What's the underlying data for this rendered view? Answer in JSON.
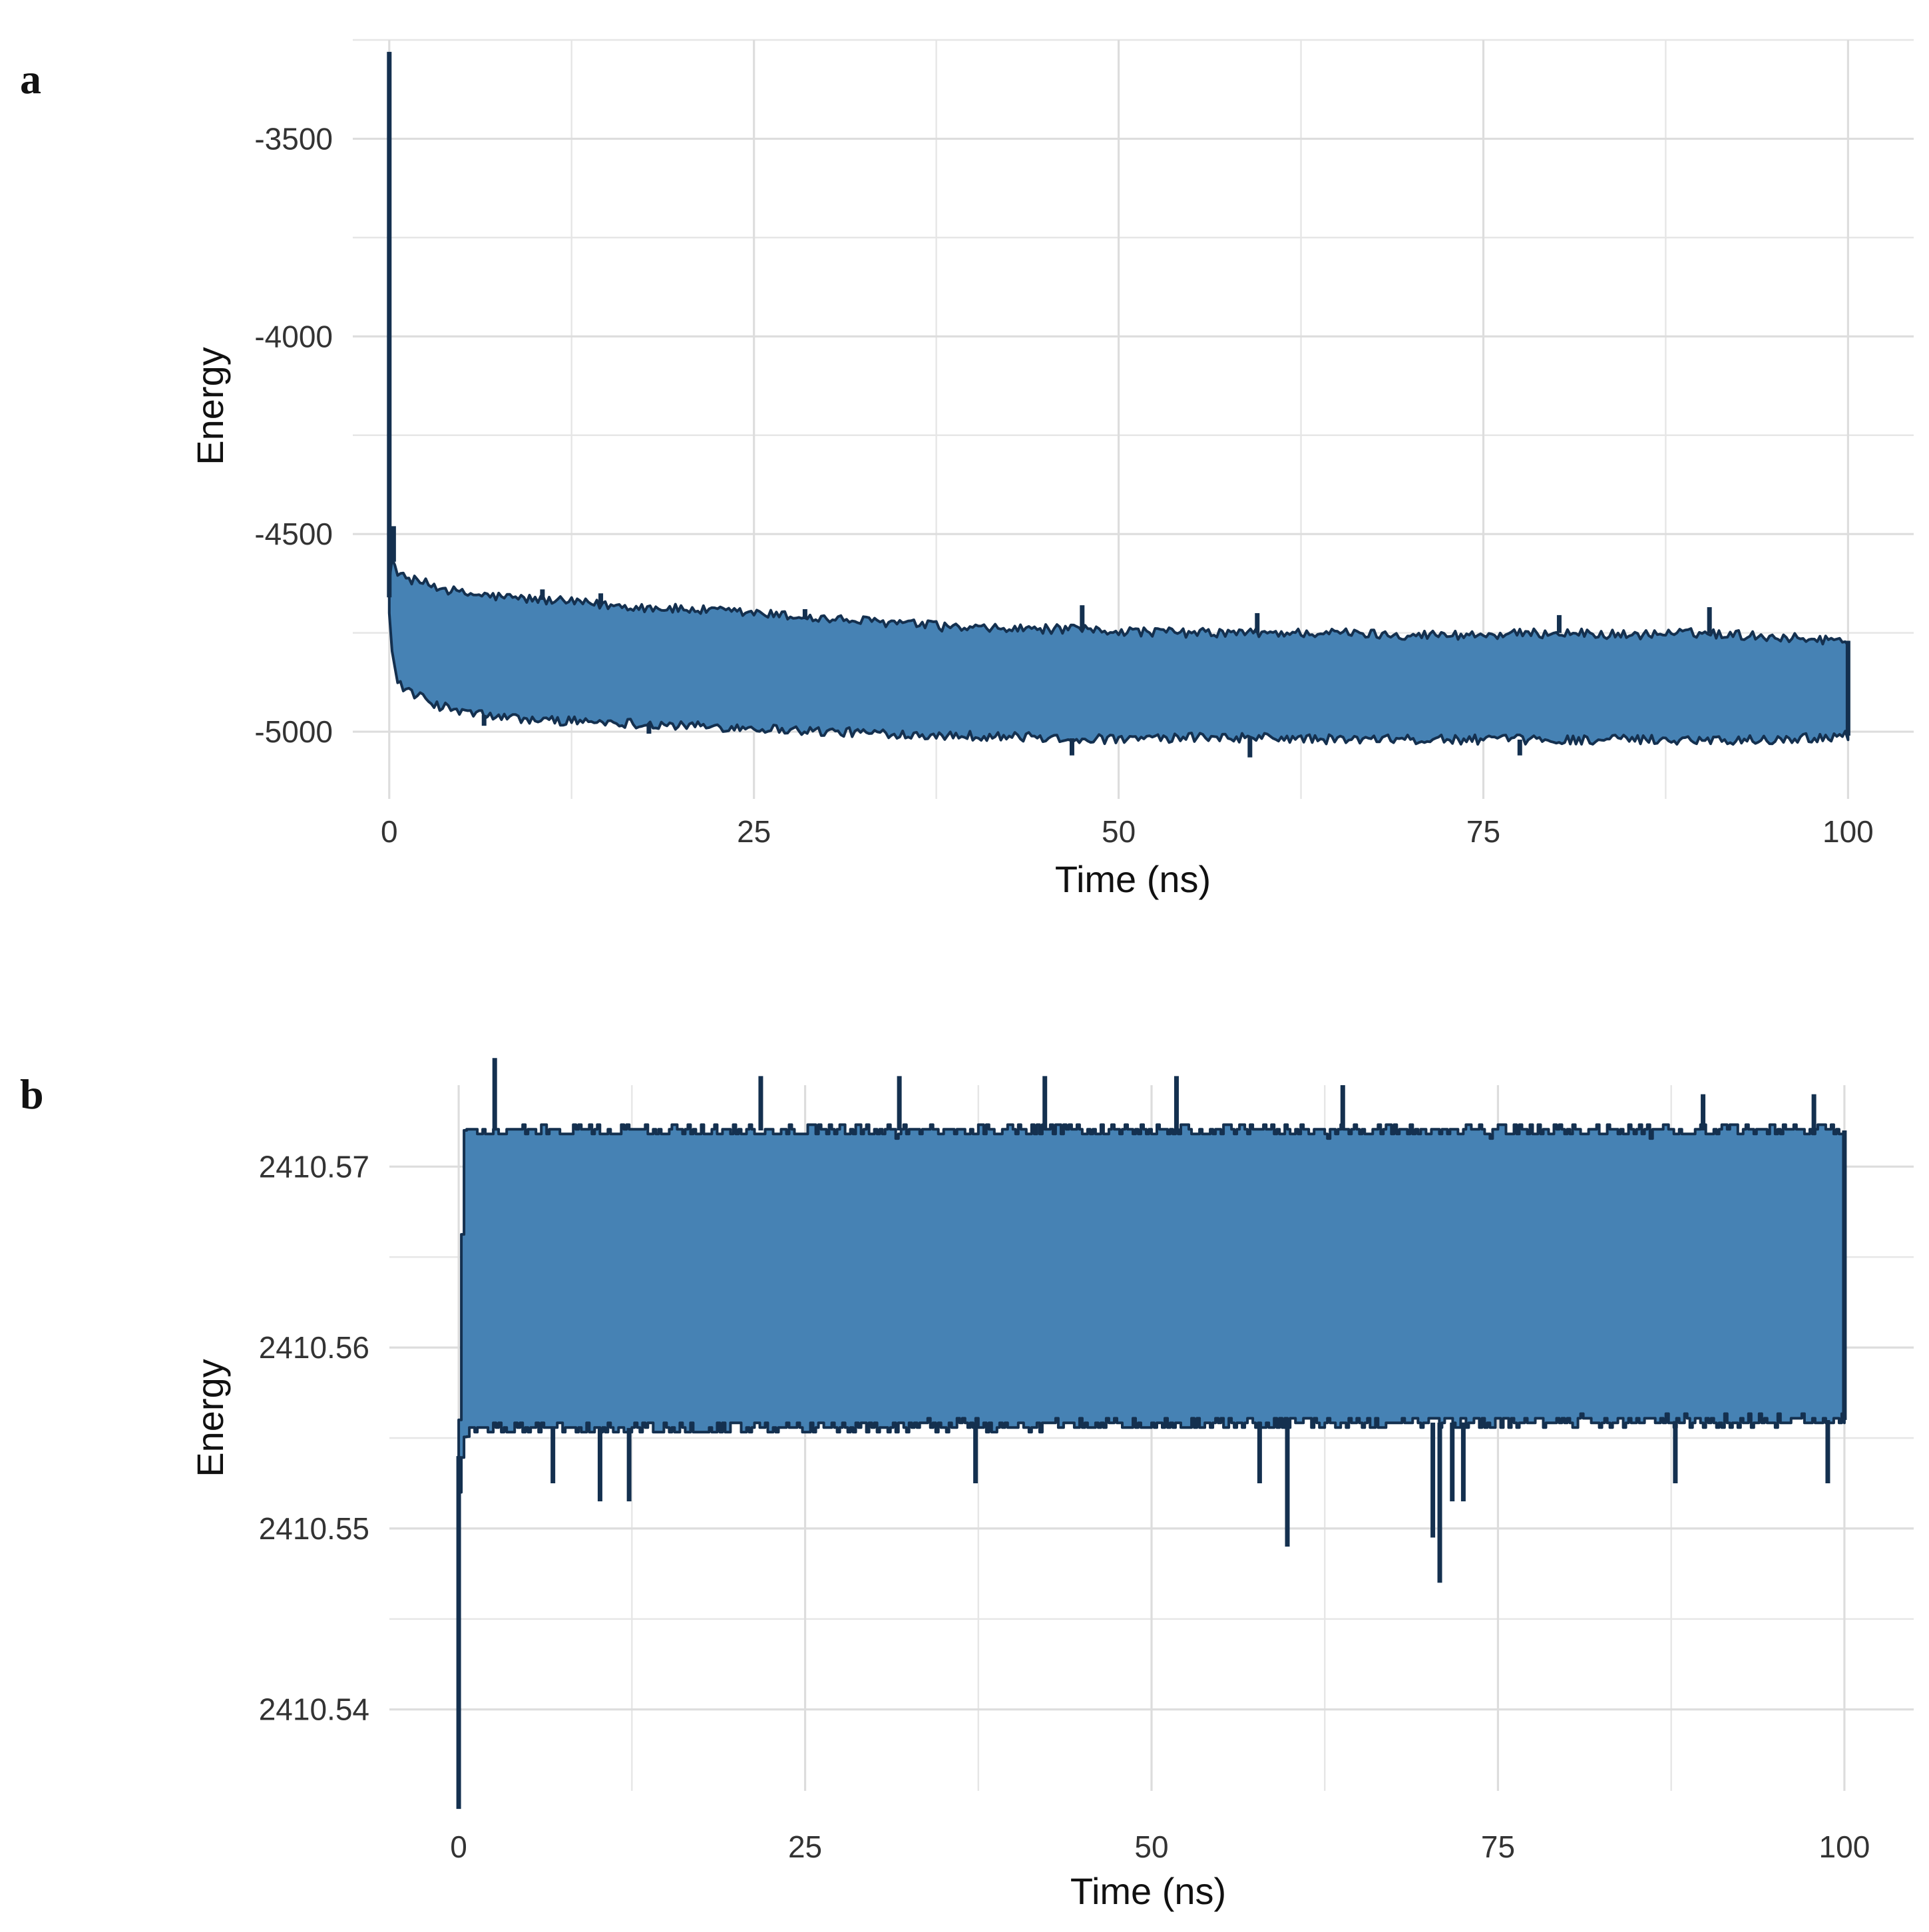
{
  "panels": [
    {
      "label": "a"
    },
    {
      "label": "b"
    }
  ],
  "chart_data": [
    {
      "type": "area",
      "panel": "a",
      "xlabel": "Time (ns)",
      "ylabel": "Energy",
      "xlim": [
        -2.5,
        104.5
      ],
      "ylim": [
        -5170,
        -3250
      ],
      "x_ticks": [
        0,
        25,
        50,
        75,
        100
      ],
      "y_ticks": [
        -3500,
        -4000,
        -4500,
        -5000
      ],
      "y_minor_ticks": [
        -3250,
        -3750,
        -4250,
        -4750
      ],
      "grid": true,
      "fill_color": "#4682b4",
      "line_color": "#14304f",
      "initial_spike": {
        "x": 0,
        "y": -3280
      },
      "upper_envelope": {
        "x": [
          0,
          0.2,
          0.5,
          1,
          2,
          3,
          5,
          8,
          10,
          15,
          20,
          25,
          30,
          35,
          40,
          45,
          50,
          55,
          60,
          65,
          70,
          75,
          80,
          85,
          90,
          95,
          100
        ],
        "y": [
          -4620,
          -4560,
          -4590,
          -4610,
          -4620,
          -4630,
          -4650,
          -4660,
          -4665,
          -4680,
          -4690,
          -4700,
          -4715,
          -4725,
          -4740,
          -4740,
          -4745,
          -4750,
          -4750,
          -4750,
          -4755,
          -4755,
          -4750,
          -4755,
          -4750,
          -4760,
          -4770
        ]
      },
      "lower_envelope": {
        "x": [
          0,
          0.2,
          0.5,
          1,
          2,
          3,
          5,
          8,
          10,
          15,
          20,
          25,
          30,
          35,
          40,
          45,
          50,
          55,
          60,
          65,
          70,
          75,
          80,
          85,
          90,
          95,
          100
        ],
        "y": [
          -4700,
          -4800,
          -4860,
          -4890,
          -4910,
          -4930,
          -4950,
          -4965,
          -4970,
          -4975,
          -4985,
          -4990,
          -5000,
          -5005,
          -5010,
          -5015,
          -5020,
          -5015,
          -5015,
          -5020,
          -5020,
          -5020,
          -5020,
          -5020,
          -5020,
          -5020,
          -5010
        ]
      },
      "upper_peaks": [
        {
          "x": 0.3,
          "y": -4480
        },
        {
          "x": 10.5,
          "y": -4640
        },
        {
          "x": 14.5,
          "y": -4650
        },
        {
          "x": 28.5,
          "y": -4690
        },
        {
          "x": 47.5,
          "y": -4680
        },
        {
          "x": 59.5,
          "y": -4700
        },
        {
          "x": 80.2,
          "y": -4705
        },
        {
          "x": 90.5,
          "y": -4685
        }
      ],
      "lower_dips": [
        {
          "x": 6.5,
          "y": -4985
        },
        {
          "x": 17.8,
          "y": -5005
        },
        {
          "x": 46.8,
          "y": -5060
        },
        {
          "x": 59,
          "y": -5065
        },
        {
          "x": 77.5,
          "y": -5060
        }
      ]
    },
    {
      "type": "area",
      "panel": "b",
      "xlabel": "Time (ns)",
      "ylabel": "Energy",
      "xlim": [
        -5,
        105
      ],
      "ylim": [
        2410.5355,
        2410.5745
      ],
      "x_ticks": [
        0,
        25,
        50,
        75,
        100
      ],
      "y_ticks": [
        2410.54,
        2410.55,
        2410.56,
        2410.57
      ],
      "y_minor_ticks": [
        2410.535,
        2410.545,
        2410.555,
        2410.565,
        2410.575
      ],
      "grid": true,
      "fill_color": "#4682b4",
      "line_color": "#14304f",
      "initial_spike": {
        "x": 0,
        "y": 2410.5345
      },
      "upper_envelope": {
        "x": [
          0,
          0.3,
          1,
          100
        ],
        "y": [
          2410.556,
          2410.572,
          2410.572,
          2410.572
        ]
      },
      "lower_envelope": {
        "x": [
          0,
          0.3,
          1,
          100
        ],
        "y": [
          2410.552,
          2410.555,
          2410.5555,
          2410.556
        ]
      },
      "upper_peaks": [
        {
          "x": 2.6,
          "y": 2410.576
        },
        {
          "x": 21.8,
          "y": 2410.575
        },
        {
          "x": 31.8,
          "y": 2410.575
        },
        {
          "x": 42.3,
          "y": 2410.575
        },
        {
          "x": 51.8,
          "y": 2410.575
        },
        {
          "x": 63.8,
          "y": 2410.5745
        },
        {
          "x": 89.8,
          "y": 2410.574
        },
        {
          "x": 97.8,
          "y": 2410.574
        }
      ],
      "lower_dips": [
        {
          "x": 6.8,
          "y": 2410.5525
        },
        {
          "x": 10.2,
          "y": 2410.5515
        },
        {
          "x": 12.3,
          "y": 2410.5515
        },
        {
          "x": 37.3,
          "y": 2410.5525
        },
        {
          "x": 57.8,
          "y": 2410.5525
        },
        {
          "x": 59.8,
          "y": 2410.549
        },
        {
          "x": 70.3,
          "y": 2410.5495
        },
        {
          "x": 70.8,
          "y": 2410.547
        },
        {
          "x": 71.7,
          "y": 2410.5515
        },
        {
          "x": 72.5,
          "y": 2410.5515
        },
        {
          "x": 87.8,
          "y": 2410.5525
        },
        {
          "x": 98.8,
          "y": 2410.5525
        }
      ]
    }
  ]
}
